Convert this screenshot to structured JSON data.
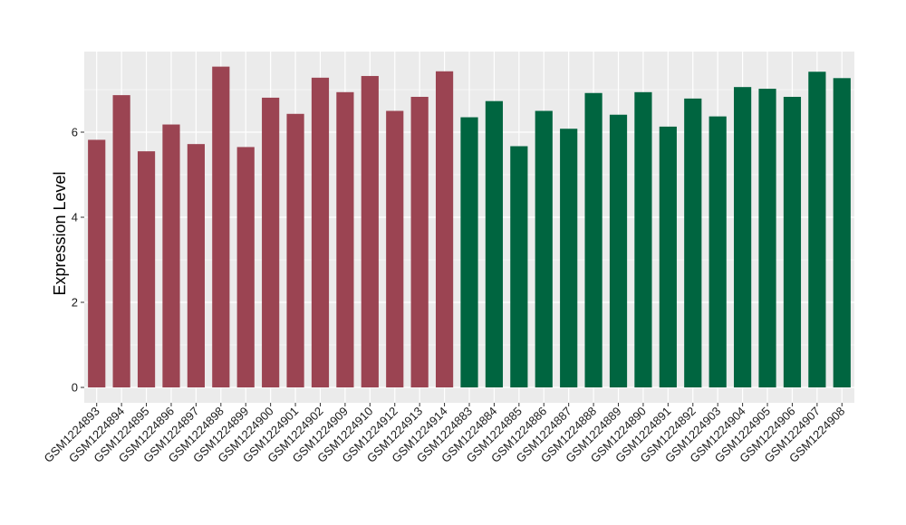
{
  "chart_data": {
    "type": "bar",
    "title": "",
    "xlabel": "",
    "ylabel": "Expression Level",
    "ylim": [
      0,
      7.7
    ],
    "yticks": [
      0,
      2,
      4,
      6
    ],
    "grid": true,
    "legend": "none",
    "categories": [
      "GSM1224893",
      "GSM1224894",
      "GSM1224895",
      "GSM1224896",
      "GSM1224897",
      "GSM1224898",
      "GSM1224899",
      "GSM1224900",
      "GSM1224901",
      "GSM1224902",
      "GSM1224909",
      "GSM1224910",
      "GSM1224912",
      "GSM1224913",
      "GSM1224914",
      "GSM1224883",
      "GSM1224884",
      "GSM1224885",
      "GSM1224886",
      "GSM1224887",
      "GSM1224888",
      "GSM1224889",
      "GSM1224890",
      "GSM1224891",
      "GSM1224892",
      "GSM1224903",
      "GSM1224904",
      "GSM1224905",
      "GSM1224906",
      "GSM1224907",
      "GSM1224908"
    ],
    "values": [
      5.82,
      6.87,
      5.55,
      6.18,
      5.72,
      7.54,
      5.65,
      6.81,
      6.43,
      7.28,
      6.94,
      7.32,
      6.5,
      6.83,
      7.43,
      6.35,
      6.73,
      5.67,
      6.5,
      6.08,
      6.92,
      6.41,
      6.94,
      6.13,
      6.79,
      6.37,
      7.06,
      7.02,
      6.83,
      7.42,
      7.27
    ],
    "groups": [
      0,
      0,
      0,
      0,
      0,
      0,
      0,
      0,
      0,
      0,
      0,
      0,
      0,
      0,
      0,
      1,
      1,
      1,
      1,
      1,
      1,
      1,
      1,
      1,
      1,
      1,
      1,
      1,
      1,
      1,
      1
    ],
    "group_colors": [
      "#9b4452",
      "#006540"
    ],
    "panel_background": "#ebebeb",
    "grid_color": "#ffffff"
  }
}
